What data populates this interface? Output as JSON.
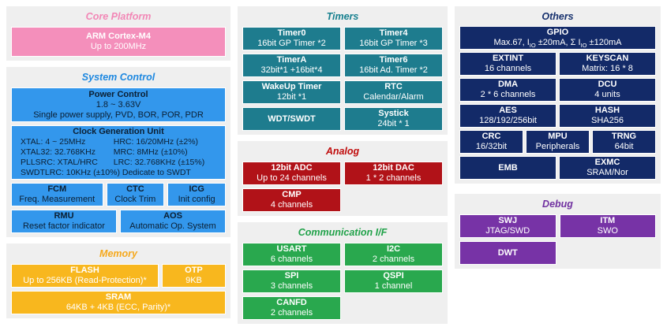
{
  "colors": {
    "pink": "#F48FBB",
    "blue": "#3397EC",
    "teal": "#1E7C8E",
    "red": "#B11218",
    "green": "#29A84E",
    "navy": "#132A68",
    "purple": "#7733A6",
    "orange": "#F8B71E",
    "panel_bg": "#EFEFEF",
    "page_bg": "#FFFFFF",
    "blue_block_text": "#0B1F33"
  },
  "sections": {
    "core_platform": {
      "title": "Core Platform",
      "cpu": {
        "title": "ARM Cortex-M4",
        "subtitle": "Up to 200MHz"
      }
    },
    "system_control": {
      "title": "System Control",
      "power": {
        "title": "Power Control",
        "line1": "1.8 ~ 3.63V",
        "line2": "Single power supply, PVD, BOR, POR,  PDR"
      },
      "clock": {
        "title": "Clock Generation Unit",
        "left": [
          "XTAL: 4 ~ 25MHz",
          "XTAL32: 32.768KHz",
          "PLLSRC: XTAL/HRC"
        ],
        "right": [
          "HRC: 16/20MHz (±2%)",
          "MRC: 8MHz (±10%)",
          "LRC: 32.768KHz (±15%)"
        ],
        "bottom": "SWDTLRC: 10KHz (±10%) Dedicate to SWDT"
      },
      "fcm": {
        "title": "FCM",
        "subtitle": "Freq. Measurement"
      },
      "ctc": {
        "title": "CTC",
        "subtitle": "Clock Trim"
      },
      "icg": {
        "title": "ICG",
        "subtitle": "Init config"
      },
      "rmu": {
        "title": "RMU",
        "subtitle": "Reset factor indicator"
      },
      "aos": {
        "title": "AOS",
        "subtitle": "Automatic Op. System"
      }
    },
    "memory": {
      "title": "Memory",
      "flash": {
        "title": "FLASH",
        "subtitle": "Up to 256KB (Read-Protection)*"
      },
      "otp": {
        "title": "OTP",
        "subtitle": "9KB"
      },
      "sram": {
        "title": "SRAM",
        "subtitle": "64KB + 4KB (ECC, Parity)*"
      }
    },
    "timers": {
      "title": "Timers",
      "timer0": {
        "title": "Timer0",
        "subtitle": "16bit GP Timer *2"
      },
      "timer4": {
        "title": "Timer4",
        "subtitle": "16bit GP Timer *3"
      },
      "timera": {
        "title": "TimerA",
        "subtitle": "32bit*1 +16bit*4"
      },
      "timer6": {
        "title": "Timer6",
        "subtitle": "16bit Ad. Timer *2"
      },
      "wakeup": {
        "title": "WakeUp Timer",
        "subtitle": "12bit *1"
      },
      "rtc": {
        "title": "RTC",
        "subtitle": "Calendar/Alarm"
      },
      "wdt": {
        "title": "WDT/SWDT"
      },
      "systick": {
        "title": "Systick",
        "subtitle": "24bit * 1"
      }
    },
    "analog": {
      "title": "Analog",
      "adc": {
        "title": "12bit ADC",
        "subtitle": "Up to 24 channels"
      },
      "dac": {
        "title": "12bit DAC",
        "subtitle": "1 * 2 channels"
      },
      "cmp": {
        "title": "CMP",
        "subtitle": "4 channels"
      }
    },
    "communication": {
      "title": "Communication I/F",
      "usart": {
        "title": "USART",
        "subtitle": "6 channels"
      },
      "i2c": {
        "title": "I2C",
        "subtitle": "2 channels"
      },
      "spi": {
        "title": "SPI",
        "subtitle": "3 channels"
      },
      "qspi": {
        "title": "QSPI",
        "subtitle": "1 channel"
      },
      "canfd": {
        "title": "CANFD",
        "subtitle": "2 channels"
      }
    },
    "others": {
      "title": "Others",
      "gpio": {
        "title": "GPIO",
        "line": {
          "p0": "Max.67, I",
          "s0": "IO",
          "p1": " ±20mA, Σ I",
          "s1": "IO",
          "p2": " ±120mA"
        }
      },
      "extint": {
        "title": "EXTINT",
        "subtitle": "16 channels"
      },
      "keyscan": {
        "title": "KEYSCAN",
        "subtitle": "Matrix: 16 * 8"
      },
      "dma": {
        "title": "DMA",
        "subtitle": "2 * 6 channels"
      },
      "dcu": {
        "title": "DCU",
        "subtitle": "4 units"
      },
      "aes": {
        "title": "AES",
        "subtitle": "128/192/256bit"
      },
      "hash": {
        "title": "HASH",
        "subtitle": "SHA256"
      },
      "crc": {
        "title": "CRC",
        "subtitle": "16/32bit"
      },
      "mpu": {
        "title": "MPU",
        "subtitle": "Peripherals"
      },
      "trng": {
        "title": "TRNG",
        "subtitle": "64bit"
      },
      "emb": {
        "title": "EMB"
      },
      "exmc": {
        "title": "EXMC",
        "subtitle": "SRAM/Nor"
      }
    },
    "debug": {
      "title": "Debug",
      "swj": {
        "title": "SWJ",
        "subtitle": "JTAG/SWD"
      },
      "itm": {
        "title": "ITM",
        "subtitle": "SWO"
      },
      "dwt": {
        "title": "DWT"
      }
    }
  }
}
